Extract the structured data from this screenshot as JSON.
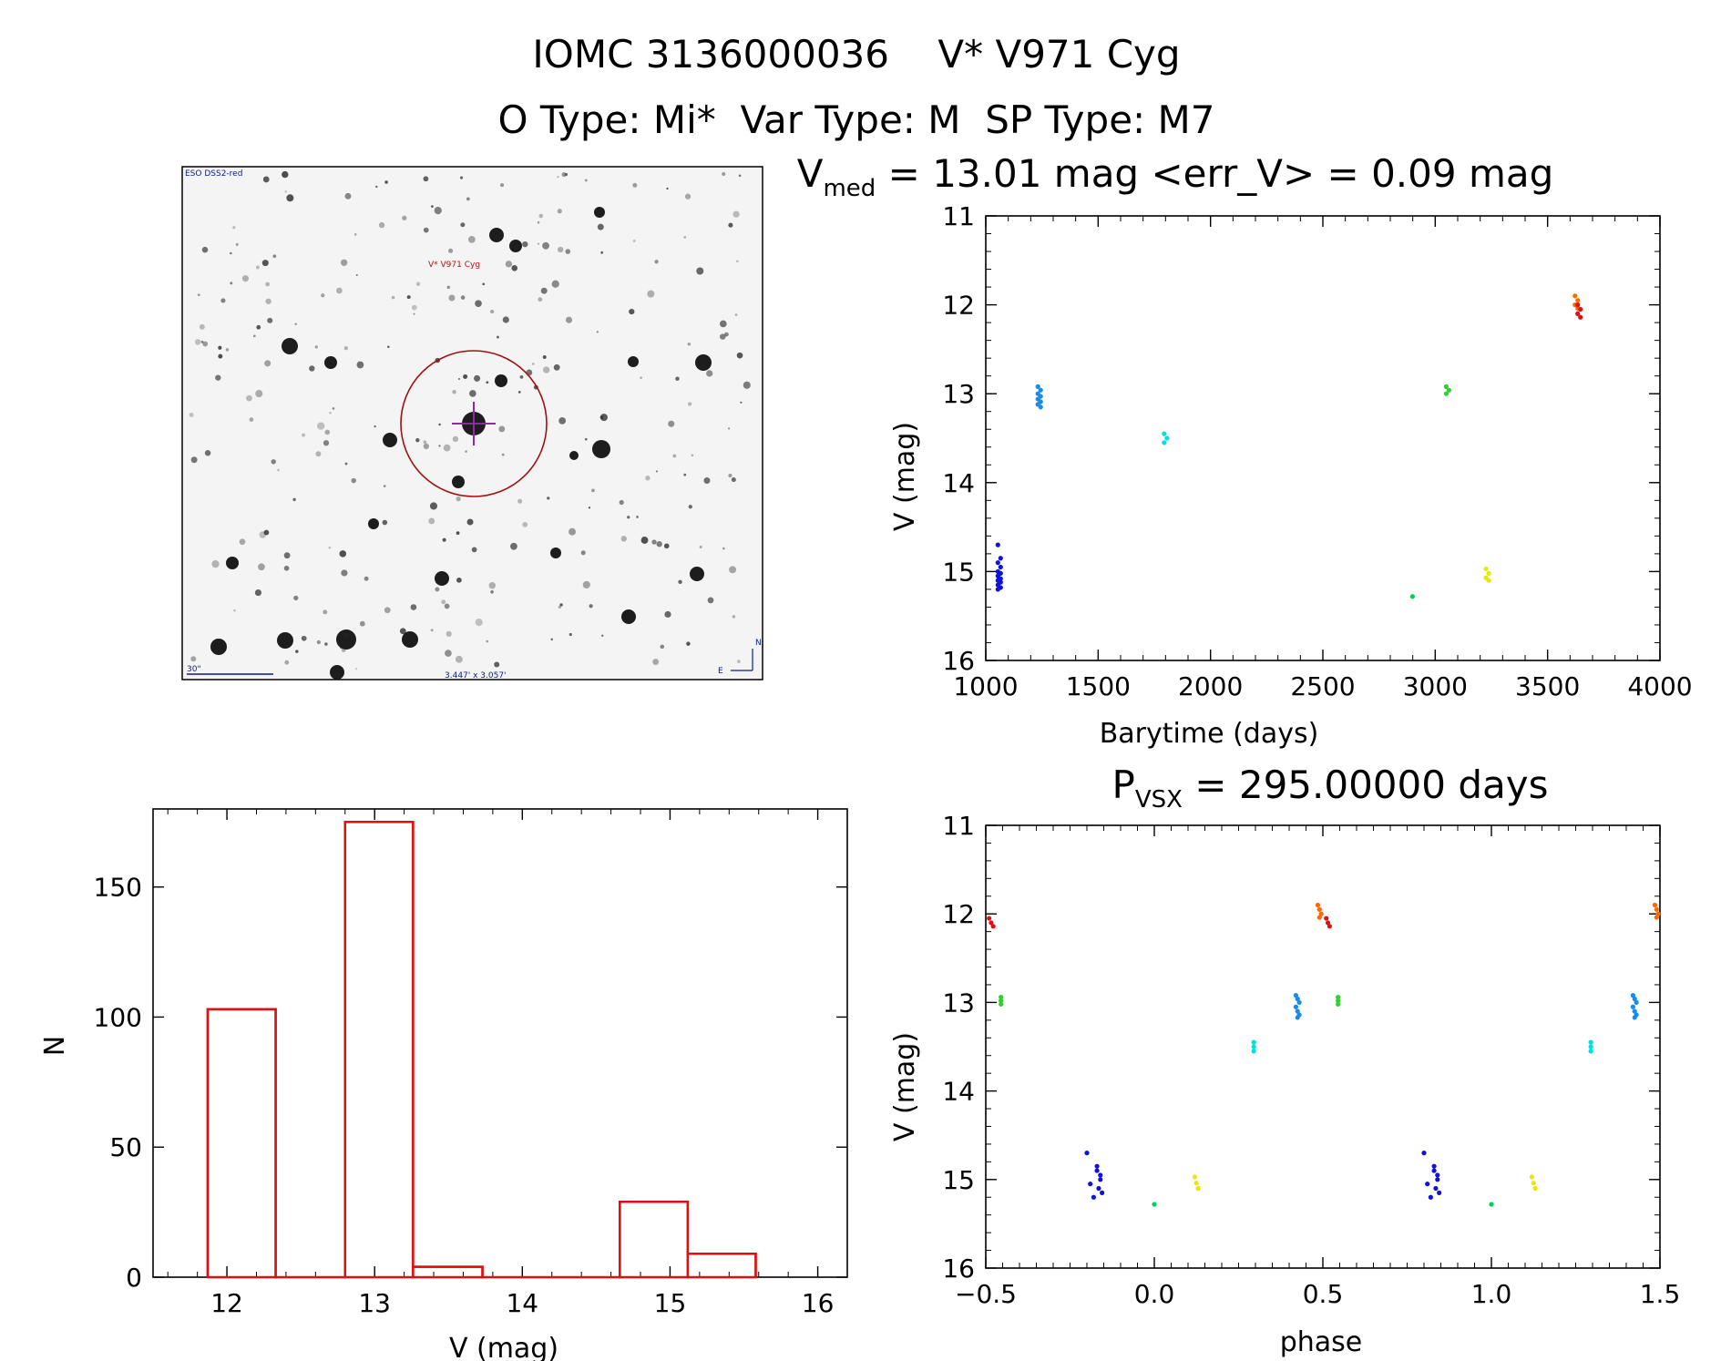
{
  "header": {
    "title": "IOMC 3136000036    V* V971 Cyg",
    "subtitle": "O Type: Mi*  Var Type: M  SP Type: M7"
  },
  "finder": {
    "survey": "ESO DSS2-red",
    "target_label": "V* V971 Cyg",
    "scale_label": "30\"",
    "fov_label": "3.447' x 3.057'",
    "north": "N",
    "east": "E"
  },
  "chart_data": [
    {
      "type": "scatter",
      "id": "lightcurve",
      "title_main": "V",
      "title_sub": "med",
      "title_rest": " = 13.01 mag <err_V> = 0.09 mag",
      "xlabel": "Barytime (days)",
      "ylabel": "V (mag)",
      "xlim": [
        1000,
        4000
      ],
      "ylim": [
        11,
        16
      ],
      "y_inverted": true,
      "xticks": [
        "1000",
        "1500",
        "2000",
        "2500",
        "3000",
        "3500",
        "4000"
      ],
      "yticks": [
        "11",
        "12",
        "13",
        "14",
        "15",
        "16"
      ],
      "groups": [
        {
          "color": "#1010e0",
          "x": 1060,
          "y": [
            14.7,
            14.85,
            14.9,
            14.95,
            15.0,
            15.02,
            15.05,
            15.08,
            15.1,
            15.12,
            15.15,
            15.18,
            15.2
          ]
        },
        {
          "color": "#1a8ce6",
          "x": 1238,
          "y": [
            12.92,
            12.96,
            13.0,
            13.03,
            13.06,
            13.09,
            13.12,
            13.15
          ]
        },
        {
          "color": "#00e0e0",
          "x": 1800,
          "y": [
            13.45,
            13.5,
            13.55
          ]
        },
        {
          "color": "#00d060",
          "x": 2905,
          "y": [
            15.28
          ]
        },
        {
          "color": "#30d030",
          "x": 3055,
          "y": [
            12.92,
            12.96,
            13.0
          ]
        },
        {
          "color": "#e8e800",
          "x": 3232,
          "y": [
            14.97,
            15.02,
            15.07,
            15.1
          ]
        },
        {
          "color": "#ff6a00",
          "x": 3628,
          "y": [
            11.9,
            11.95,
            12.0,
            12.04
          ]
        },
        {
          "color": "#e01010",
          "x": 3640,
          "y": [
            12.0,
            12.05,
            12.1,
            12.14
          ]
        }
      ]
    },
    {
      "type": "bar",
      "id": "histogram",
      "xlabel": "V (mag)",
      "ylabel": "N",
      "xlim": [
        11.5,
        16.2
      ],
      "ylim": [
        0,
        180
      ],
      "xticks": [
        "12",
        "13",
        "14",
        "15",
        "16"
      ],
      "yticks": [
        "0",
        "50",
        "100",
        "150"
      ],
      "bar_color": "#e01010",
      "bins": [
        {
          "left": 11.87,
          "right": 12.33,
          "count": 103
        },
        {
          "left": 12.33,
          "right": 12.8,
          "count": 0
        },
        {
          "left": 12.8,
          "right": 13.26,
          "count": 175
        },
        {
          "left": 13.26,
          "right": 13.73,
          "count": 4
        },
        {
          "left": 13.73,
          "right": 14.2,
          "count": 0
        },
        {
          "left": 14.2,
          "right": 14.66,
          "count": 0
        },
        {
          "left": 14.66,
          "right": 15.12,
          "count": 29
        },
        {
          "left": 15.12,
          "right": 15.58,
          "count": 9
        }
      ]
    },
    {
      "type": "scatter",
      "id": "phased",
      "title_main": "P",
      "title_sub": "VSX",
      "title_rest": " = 295.00000 days",
      "xlabel": "phase",
      "ylabel": "V (mag)",
      "xlim": [
        -0.5,
        1.5
      ],
      "ylim": [
        11,
        16
      ],
      "y_inverted": true,
      "xticks": [
        "−0.5",
        "0.0",
        "0.5",
        "1.0",
        "1.5"
      ],
      "yticks": [
        "11",
        "12",
        "13",
        "14",
        "15",
        "16"
      ],
      "groups": [
        {
          "color": "#e01010",
          "x": [
            -0.49,
            -0.484,
            -0.478
          ],
          "y": [
            12.05,
            12.1,
            12.14
          ]
        },
        {
          "color": "#30d030",
          "x": [
            -0.455,
            -0.455,
            -0.455
          ],
          "y": [
            12.94,
            12.98,
            13.02
          ]
        },
        {
          "color": "#1010e0",
          "x": [
            -0.2,
            -0.19,
            -0.18,
            -0.17,
            -0.16,
            -0.165,
            -0.155,
            -0.17,
            -0.16
          ],
          "y": [
            14.7,
            15.05,
            15.2,
            14.9,
            15.0,
            15.1,
            15.15,
            14.85,
            14.95
          ]
        },
        {
          "color": "#00d060",
          "x": [
            0.0
          ],
          "y": [
            15.28
          ]
        },
        {
          "color": "#e8e800",
          "x": [
            0.12,
            0.125,
            0.13
          ],
          "y": [
            14.97,
            15.04,
            15.1
          ]
        },
        {
          "color": "#00e0e0",
          "x": [
            0.295,
            0.295,
            0.295
          ],
          "y": [
            13.45,
            13.5,
            13.55
          ]
        },
        {
          "color": "#1a8ce6",
          "x": [
            0.42,
            0.425,
            0.43,
            0.42,
            0.425,
            0.43,
            0.425
          ],
          "y": [
            12.92,
            12.96,
            13.0,
            13.05,
            13.1,
            13.14,
            13.17
          ]
        },
        {
          "color": "#ff6a00",
          "x": [
            0.485,
            0.49,
            0.495,
            0.49
          ],
          "y": [
            11.9,
            11.95,
            12.0,
            12.04
          ]
        },
        {
          "color": "#e01010",
          "x": [
            0.51,
            0.515,
            0.52
          ],
          "y": [
            12.05,
            12.1,
            12.14
          ]
        },
        {
          "color": "#30d030",
          "x": [
            0.545,
            0.545,
            0.545
          ],
          "y": [
            12.94,
            12.98,
            13.02
          ]
        },
        {
          "color": "#1010e0",
          "x": [
            0.8,
            0.81,
            0.82,
            0.83,
            0.84,
            0.835,
            0.845,
            0.83,
            0.84
          ],
          "y": [
            14.7,
            15.05,
            15.2,
            14.9,
            15.0,
            15.1,
            15.15,
            14.85,
            14.95
          ]
        },
        {
          "color": "#00d060",
          "x": [
            1.0
          ],
          "y": [
            15.28
          ]
        },
        {
          "color": "#e8e800",
          "x": [
            1.12,
            1.125,
            1.13
          ],
          "y": [
            14.97,
            15.04,
            15.1
          ]
        },
        {
          "color": "#00e0e0",
          "x": [
            1.295,
            1.295,
            1.295
          ],
          "y": [
            13.45,
            13.5,
            13.55
          ]
        },
        {
          "color": "#1a8ce6",
          "x": [
            1.42,
            1.425,
            1.43,
            1.42,
            1.425,
            1.43,
            1.425
          ],
          "y": [
            12.92,
            12.96,
            13.0,
            13.05,
            13.1,
            13.14,
            13.17
          ]
        },
        {
          "color": "#ff6a00",
          "x": [
            1.485,
            1.49,
            1.495,
            1.49
          ],
          "y": [
            11.9,
            11.95,
            12.0,
            12.04
          ]
        }
      ]
    }
  ]
}
